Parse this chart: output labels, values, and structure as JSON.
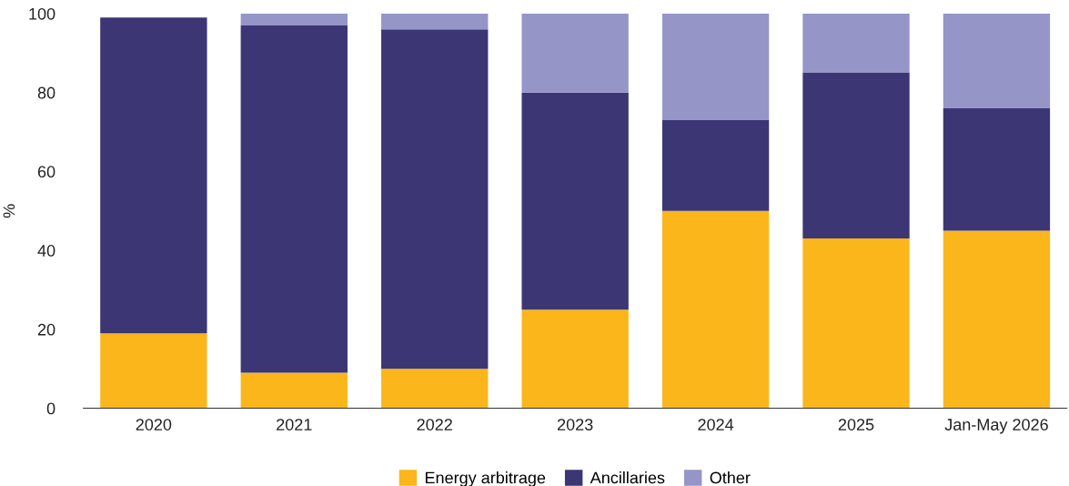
{
  "chart_data": {
    "type": "bar",
    "stacked": true,
    "ylabel": "%",
    "categories": [
      "2020",
      "2021",
      "2022",
      "2023",
      "2024",
      "2025",
      "Jan-May 2026"
    ],
    "series": [
      {
        "name": "Energy arbitrage",
        "color": "#fbb61b",
        "values": [
          19,
          9,
          10,
          25,
          50,
          43,
          45
        ]
      },
      {
        "name": "Ancillaries",
        "color": "#3c3675",
        "values": [
          80,
          88,
          86,
          55,
          23,
          42,
          31
        ]
      },
      {
        "name": "Other",
        "color": "#9595c8",
        "values": [
          0,
          3,
          4,
          20,
          27,
          15,
          24
        ]
      }
    ],
    "ylim": [
      0,
      100
    ],
    "yticks": [
      0,
      20,
      40,
      60,
      80,
      100
    ],
    "grid": false,
    "legend": "bottom"
  }
}
